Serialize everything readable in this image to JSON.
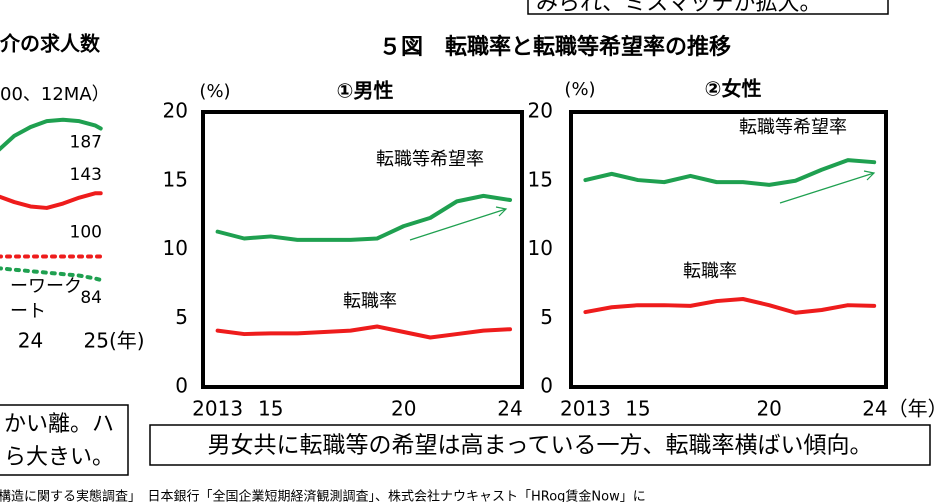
{
  "figure_title": "５図　転職率と転職等希望率の推移",
  "notes": {
    "top": "みられ、ミスマッチが拡大。",
    "left": [
      "かい離。ハ",
      "ら大きい。"
    ],
    "caption": "男女共に転職等の希望は高まっている一方、転職率横ばい傾向。",
    "source": "構造に関する実態調査」　日本銀行「全国企業短期経済観測調査」、株式会社ナウキャスト「HRog賃金Now」に"
  },
  "chart_data": [
    {
      "type": "line",
      "title": "介の求人数",
      "subtitle": "00、12MA）",
      "x": [
        23.5,
        23.75,
        24,
        24.25,
        24.5,
        24.75,
        25,
        25.08
      ],
      "xlim": [
        23.5,
        25.5
      ],
      "xticks": [
        24,
        {
          "value": 25,
          "label": "25(年)"
        }
      ],
      "ylim": [
        50,
        220
      ],
      "label_last": true,
      "annotations": [
        {
          "text": "ーワーク",
          "color": "#1fa050"
        },
        {
          "text": "ート",
          "color": "#1fa050"
        }
      ],
      "series": [
        {
          "color": "#1fa050",
          "dash": false,
          "values": [
            172,
            182,
            188,
            192,
            193,
            192,
            189,
            187
          ]
        },
        {
          "color": "#ee1c1c",
          "dash": false,
          "values": [
            141,
            137,
            134,
            133,
            136,
            140,
            143,
            143
          ]
        },
        {
          "color": "#ee1c1c",
          "dash": true,
          "values": [
            100,
            100,
            100,
            100,
            100,
            100,
            100,
            100
          ]
        },
        {
          "color": "#1fa050",
          "dash": true,
          "values": [
            92,
            91,
            90,
            89,
            88,
            87,
            85,
            84
          ]
        }
      ]
    },
    {
      "type": "line",
      "title": "①男性",
      "y_unit": "(%)",
      "x": [
        2013,
        2014,
        2015,
        2016,
        2017,
        2018,
        2019,
        2020,
        2021,
        2022,
        2023,
        2024
      ],
      "xlim": [
        2012.45,
        2024.45
      ],
      "xticks": [
        {
          "value": 2013,
          "label": "2013"
        },
        {
          "value": 2015,
          "label": "15"
        },
        {
          "value": 2020,
          "label": "20"
        },
        {
          "value": 2024,
          "label": "24"
        }
      ],
      "ylim": [
        0,
        20
      ],
      "yticks": [
        0,
        5,
        10,
        15,
        20
      ],
      "series": [
        {
          "name": "転職等希望率",
          "color": "#1fa050",
          "values": [
            11.3,
            10.8,
            10.95,
            10.7,
            10.7,
            10.7,
            10.8,
            11.7,
            12.3,
            13.5,
            13.9,
            13.6
          ]
        },
        {
          "name": "転職率",
          "color": "#ee1c1c",
          "values": [
            4.1,
            3.85,
            3.9,
            3.9,
            4.0,
            4.1,
            4.4,
            4.0,
            3.6,
            3.85,
            4.1,
            4.2
          ]
        }
      ]
    },
    {
      "type": "line",
      "title": "②女性",
      "y_unit": "(%)",
      "x": [
        2013,
        2014,
        2015,
        2016,
        2017,
        2018,
        2019,
        2020,
        2021,
        2022,
        2023,
        2024
      ],
      "xlim": [
        2012.45,
        2024.45
      ],
      "xticks": [
        {
          "value": 2013,
          "label": "2013"
        },
        {
          "value": 2015,
          "label": "15"
        },
        {
          "value": 2020,
          "label": "20"
        },
        {
          "value": 2024,
          "label": "24（年）"
        }
      ],
      "ylim": [
        0,
        20
      ],
      "yticks": [
        0,
        5,
        10,
        15,
        20
      ],
      "series": [
        {
          "name": "転職等希望率",
          "color": "#1fa050",
          "values": [
            15.05,
            15.5,
            15.05,
            14.9,
            15.35,
            14.9,
            14.9,
            14.7,
            15.0,
            15.8,
            16.5,
            16.35
          ]
        },
        {
          "name": "転職率",
          "color": "#ee1c1c",
          "values": [
            5.45,
            5.8,
            5.95,
            5.95,
            5.9,
            6.25,
            6.4,
            5.95,
            5.4,
            5.6,
            5.95,
            5.9
          ]
        }
      ]
    }
  ]
}
